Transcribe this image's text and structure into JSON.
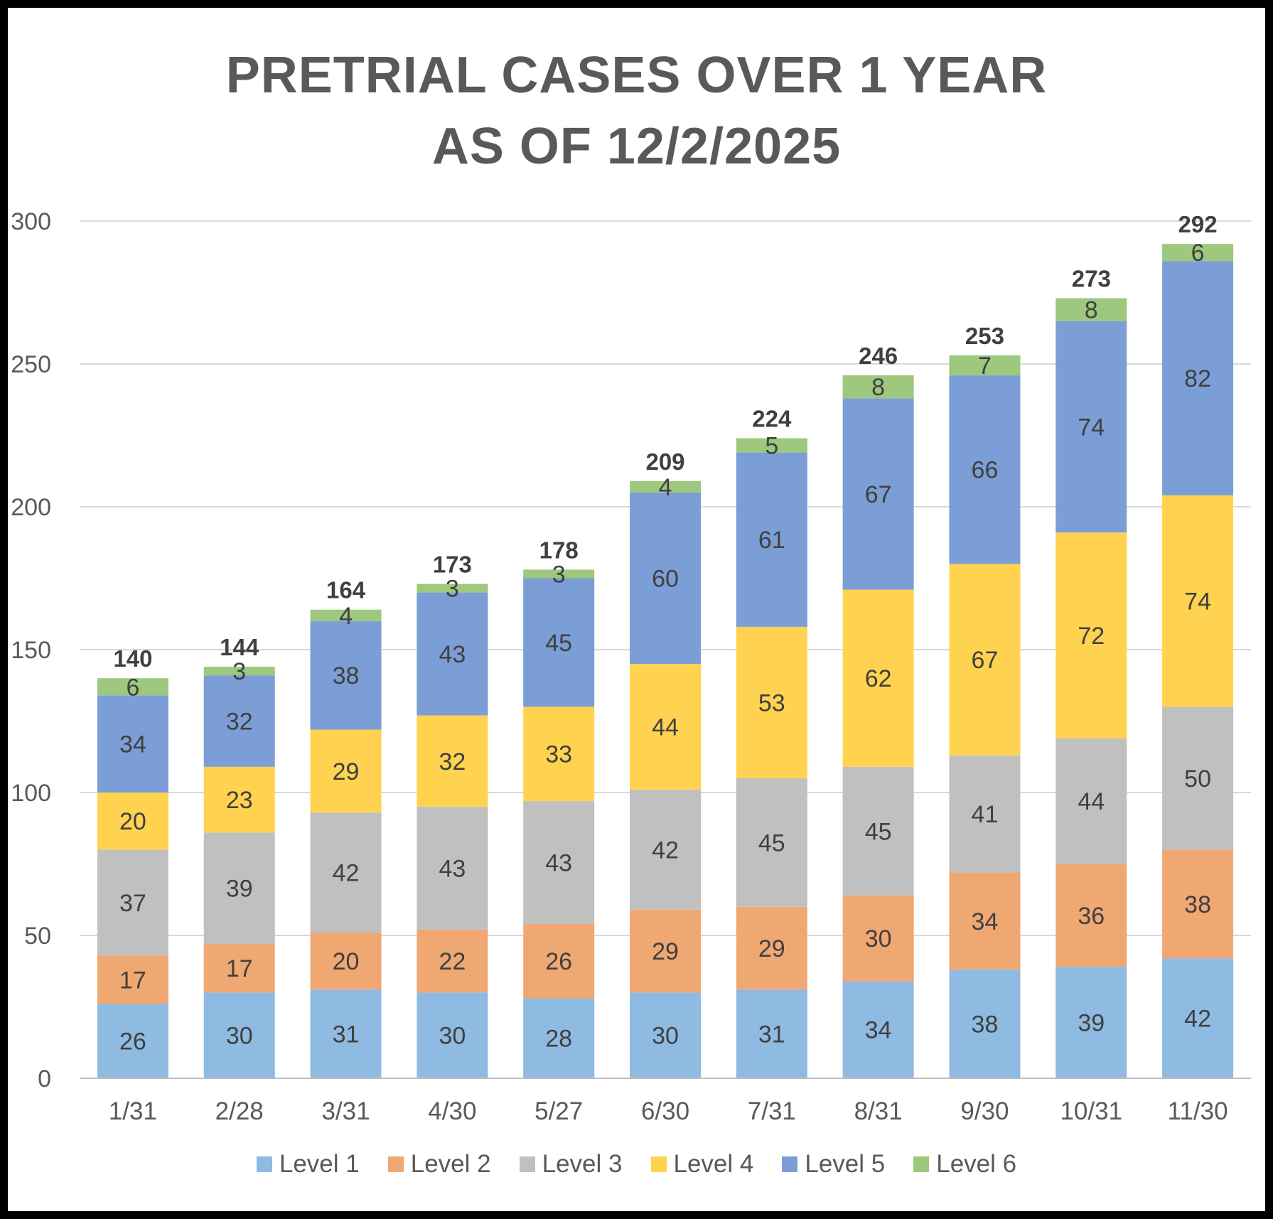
{
  "chart_data": {
    "type": "bar",
    "stacked": true,
    "title": [
      "PRETRIAL CASES OVER 1 YEAR",
      "AS OF 12/2/2025"
    ],
    "categories": [
      "1/31",
      "2/28",
      "3/31",
      "4/30",
      "5/27",
      "6/30",
      "7/31",
      "8/31",
      "9/30",
      "10/31",
      "11/30"
    ],
    "series": [
      {
        "name": "Level 1",
        "color": "#8FBAE2",
        "values": [
          26,
          30,
          31,
          30,
          28,
          30,
          31,
          34,
          38,
          39,
          42
        ]
      },
      {
        "name": "Level 2",
        "color": "#F0A873",
        "values": [
          17,
          17,
          20,
          22,
          26,
          29,
          29,
          30,
          34,
          36,
          38
        ]
      },
      {
        "name": "Level 3",
        "color": "#C0C0C0",
        "values": [
          37,
          39,
          42,
          43,
          43,
          42,
          45,
          45,
          41,
          44,
          50
        ]
      },
      {
        "name": "Level 4",
        "color": "#FFD34F",
        "values": [
          20,
          23,
          29,
          32,
          33,
          44,
          53,
          62,
          67,
          72,
          74
        ]
      },
      {
        "name": "Level 5",
        "color": "#7C9ED6",
        "values": [
          34,
          32,
          38,
          43,
          45,
          60,
          61,
          67,
          66,
          74,
          82
        ]
      },
      {
        "name": "Level 6",
        "color": "#9DC87E",
        "values": [
          6,
          3,
          4,
          3,
          3,
          4,
          5,
          8,
          7,
          8,
          6
        ]
      }
    ],
    "totals": [
      140,
      144,
      164,
      173,
      178,
      209,
      224,
      246,
      253,
      273,
      292
    ],
    "ylim": [
      0,
      300
    ],
    "yticks": [
      0,
      50,
      100,
      150,
      200,
      250,
      300
    ],
    "xlabel": "",
    "ylabel": "",
    "grid": true,
    "legend_position": "bottom"
  }
}
